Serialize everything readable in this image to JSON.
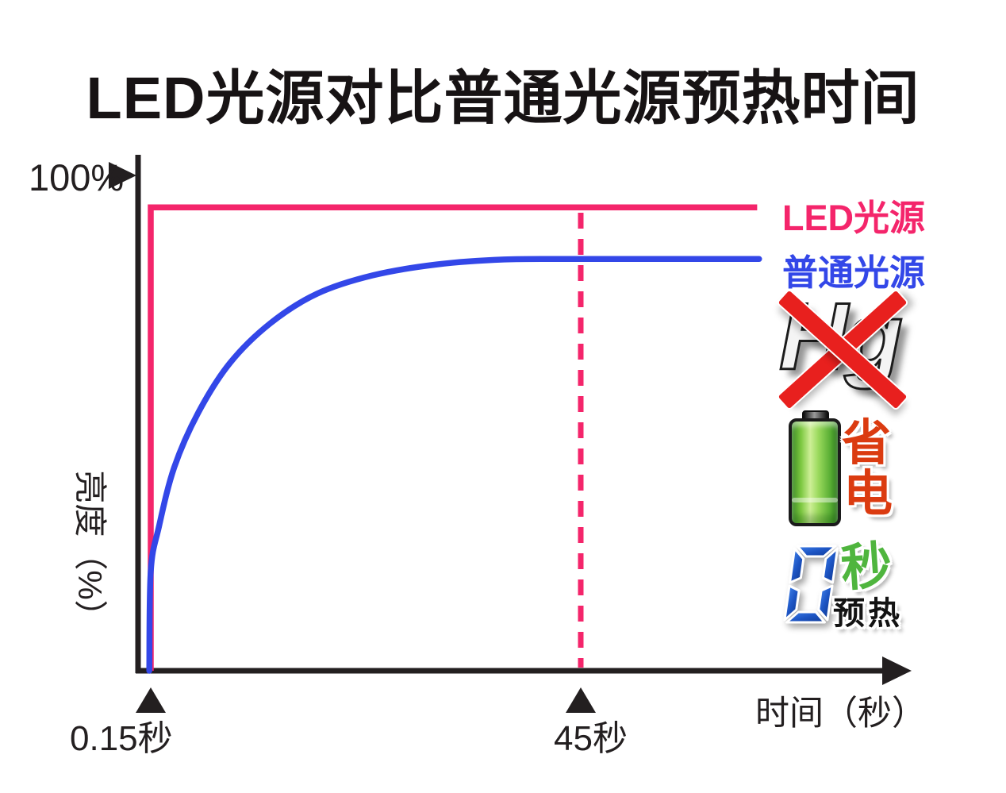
{
  "chart_data": {
    "type": "line",
    "title": "LED光源对比普通光源预热时间",
    "xlabel": "时间（秒）",
    "ylabel": "亮度（%）",
    "y_axis_max_label": "100%",
    "x_axis": {
      "unit": "秒",
      "min": 0,
      "max": 63
    },
    "y_axis": {
      "unit": "%",
      "min": 0,
      "max": 100
    },
    "grid": false,
    "legend_position": "right-outside",
    "x_ticks": [
      {
        "value": 0.15,
        "label": "0.15秒"
      },
      {
        "value": 45,
        "label": "45秒"
      }
    ],
    "annotations": {
      "dashed_vertical_line_x": 45
    },
    "series": [
      {
        "name": "LED光源",
        "color": "#F4256B",
        "shape": "step",
        "comment": "instant full brightness at 0.15 s",
        "points": [
          [
            0.15,
            0
          ],
          [
            0.15,
            93.4
          ],
          [
            63.4,
            93.4
          ]
        ]
      },
      {
        "name": "普通光源",
        "color": "#3347E8",
        "shape": "smooth",
        "comment": "gradual warm-up, plateau ~83% by 45 s",
        "points": [
          [
            0,
            0
          ],
          [
            0.15,
            20
          ],
          [
            1,
            29
          ],
          [
            2.6,
            41
          ],
          [
            5.1,
            52
          ],
          [
            8.4,
            62
          ],
          [
            12.6,
            70
          ],
          [
            17.5,
            76
          ],
          [
            23.3,
            79.7
          ],
          [
            30,
            81.9
          ],
          [
            37,
            82.9
          ],
          [
            45,
            83
          ],
          [
            63.6,
            83
          ]
        ]
      }
    ]
  },
  "icons": {
    "no_mercury": {
      "text": "Hg",
      "cross_color": "#E8201E",
      "meaning": "mercury-free"
    },
    "power_saving": {
      "char_top": "省",
      "char_bottom": "电",
      "text_color": "#DB3B10",
      "battery_color": "#7CC840"
    },
    "zero_warmup": {
      "digit": "0",
      "digit_color": "#1D55C4",
      "unit": "秒",
      "unit_color": "#4FB53E",
      "caption": "预热"
    }
  },
  "colors": {
    "led_line": "#F4256B",
    "ordinary_line": "#3347E8",
    "axis": "#231F20",
    "dashed_line": "#F4256B",
    "background": "#FFFFFF"
  }
}
